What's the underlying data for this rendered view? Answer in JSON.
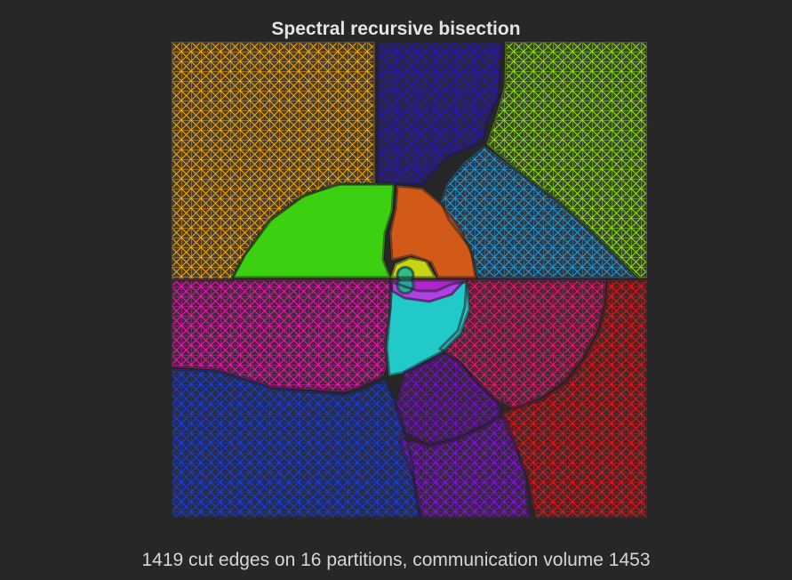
{
  "figure": {
    "title": "Spectral recursive bisection",
    "caption": "1419 cut edges on 16 partitions, communication volume 1453"
  },
  "mesh": {
    "partition_count": 16,
    "background_color": "#272727",
    "partitions": [
      {
        "id": 1,
        "color": "#f2a818"
      },
      {
        "id": 2,
        "color": "#2a14c2"
      },
      {
        "id": 3,
        "color": "#8ee21a"
      },
      {
        "id": 4,
        "color": "#2a98d8"
      },
      {
        "id": 5,
        "color": "#3ff00e"
      },
      {
        "id": 6,
        "color": "#f06418"
      },
      {
        "id": 7,
        "color": "#e4f514"
      },
      {
        "id": 8,
        "color": "#ee18b4"
      },
      {
        "id": 9,
        "color": "#e81a70"
      },
      {
        "id": 10,
        "color": "#e8161a"
      },
      {
        "id": 11,
        "color": "#22e6e6"
      },
      {
        "id": 12,
        "color": "#1a3edc"
      },
      {
        "id": 13,
        "color": "#7a10c8"
      },
      {
        "id": 14,
        "color": "#8412d8"
      },
      {
        "id": 15,
        "color": "#c828e8"
      },
      {
        "id": 16,
        "color": "#14b89a"
      }
    ]
  }
}
